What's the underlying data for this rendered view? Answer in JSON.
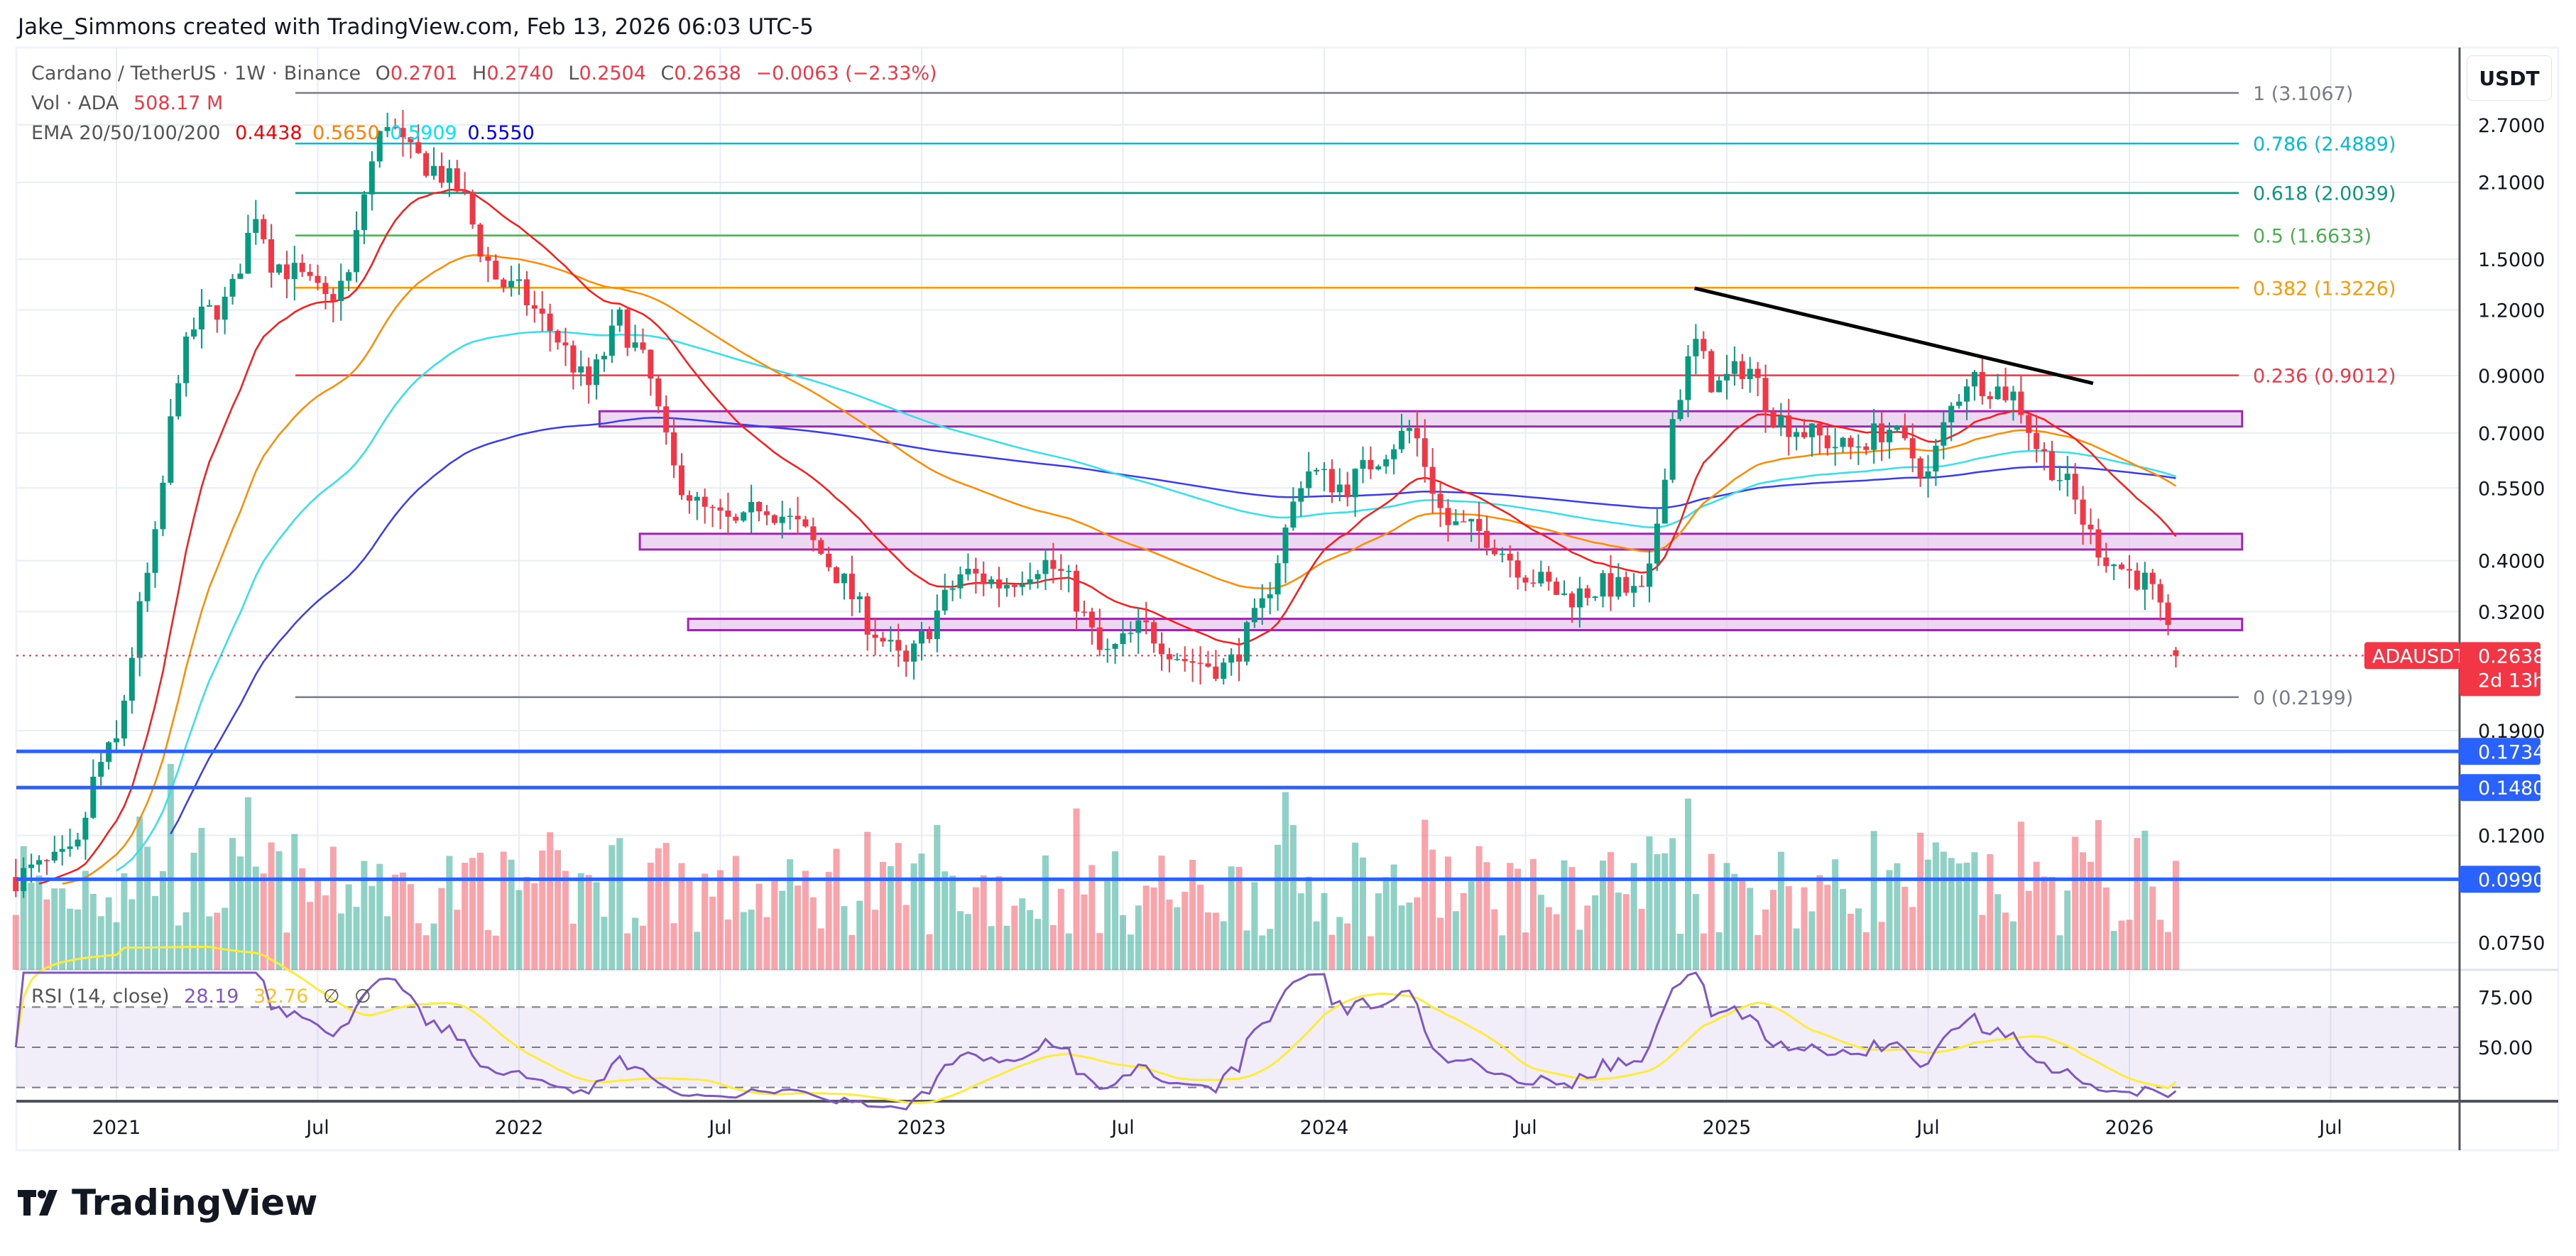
{
  "header": {
    "credit": "Jake_Simmons created with TradingView.com, Feb 13, 2026 06:03 UTC-5"
  },
  "legend": {
    "symbol": "Cardano / TetherUS · 1W · Binance",
    "o_label": "O",
    "o": "0.2701",
    "h_label": "H",
    "h": "0.2740",
    "l_label": "L",
    "l": "0.2504",
    "c_label": "C",
    "c": "0.2638",
    "change": "−0.0063 (−2.33%)",
    "vol_label": "Vol · ADA",
    "vol": "508.17 M",
    "ema_label": "EMA 20/50/100/200",
    "ema20": "0.4438",
    "ema50": "0.5650",
    "ema100": "0.5909",
    "ema200": "0.5550",
    "rsi_label": "RSI (14, close)",
    "rsi": "28.19",
    "rsi_ma": "32.76",
    "rsi_na1": "∅",
    "rsi_na2": "∅"
  },
  "axis": {
    "currency": "USDT"
  },
  "logo": {
    "text": "TradingView"
  },
  "colors": {
    "up": "#089981",
    "down": "#f23645",
    "ema20": "#ff1a1a",
    "ema50": "#ff8c00",
    "ema100": "#33e0ee",
    "ema200": "#3b3bf0",
    "rsi": "#7e57c2",
    "rsi_ma": "#ffeb3b",
    "hline": "#2962ff",
    "zone": "#9c27b0"
  },
  "chart_data": {
    "type": "candlestick",
    "title": "Cardano / TetherUS · 1W · Binance",
    "y_scale": "log",
    "y_ticks": [
      "2.7000",
      "2.1000",
      "1.5000",
      "1.2000",
      "0.9000",
      "0.7000",
      "0.5500",
      "0.4000",
      "0.3200",
      "0.1900",
      "0.1200",
      "0.0750"
    ],
    "x_ticks": [
      "2021",
      "Jul",
      "2022",
      "Jul",
      "2023",
      "Jul",
      "2024",
      "Jul",
      "2025",
      "Jul",
      "2026",
      "Jul"
    ],
    "x_tick_years": [
      2021.0,
      2021.5,
      2022.0,
      2022.5,
      2023.0,
      2023.5,
      2024.0,
      2024.5,
      2025.0,
      2025.5,
      2026.0,
      2026.5
    ],
    "last_candle": {
      "open": 0.2701,
      "high": 0.274,
      "low": 0.2504,
      "close": 0.2638
    },
    "current_price": {
      "symbol": "ADAUSDT",
      "price": "0.2638",
      "countdown": "2d 13h"
    },
    "approx_close_keypoints": [
      [
        2020.75,
        0.1
      ],
      [
        2020.9,
        0.11
      ],
      [
        2020.95,
        0.16
      ],
      [
        2021.0,
        0.18
      ],
      [
        2021.05,
        0.3
      ],
      [
        2021.1,
        0.45
      ],
      [
        2021.15,
        0.9
      ],
      [
        2021.2,
        1.15
      ],
      [
        2021.28,
        1.25
      ],
      [
        2021.35,
        1.9
      ],
      [
        2021.38,
        1.5
      ],
      [
        2021.45,
        1.4
      ],
      [
        2021.52,
        1.25
      ],
      [
        2021.58,
        1.4
      ],
      [
        2021.62,
        2.1
      ],
      [
        2021.67,
        2.8
      ],
      [
        2021.72,
        2.4
      ],
      [
        2021.8,
        2.2
      ],
      [
        2021.86,
        2.0
      ],
      [
        2021.9,
        1.6
      ],
      [
        2021.95,
        1.35
      ],
      [
        2022.0,
        1.3
      ],
      [
        2022.1,
        1.05
      ],
      [
        2022.17,
        0.85
      ],
      [
        2022.25,
        1.15
      ],
      [
        2022.32,
        0.92
      ],
      [
        2022.38,
        0.6
      ],
      [
        2022.45,
        0.5
      ],
      [
        2022.55,
        0.46
      ],
      [
        2022.6,
        0.52
      ],
      [
        2022.7,
        0.46
      ],
      [
        2022.8,
        0.37
      ],
      [
        2022.86,
        0.31
      ],
      [
        2022.96,
        0.25
      ],
      [
        2023.05,
        0.33
      ],
      [
        2023.1,
        0.38
      ],
      [
        2023.2,
        0.36
      ],
      [
        2023.3,
        0.4
      ],
      [
        2023.36,
        0.37
      ],
      [
        2023.45,
        0.26
      ],
      [
        2023.55,
        0.3
      ],
      [
        2023.65,
        0.26
      ],
      [
        2023.76,
        0.25
      ],
      [
        2023.85,
        0.33
      ],
      [
        2023.95,
        0.6
      ],
      [
        2024.05,
        0.55
      ],
      [
        2024.15,
        0.65
      ],
      [
        2024.22,
        0.72
      ],
      [
        2024.3,
        0.47
      ],
      [
        2024.4,
        0.45
      ],
      [
        2024.5,
        0.38
      ],
      [
        2024.6,
        0.34
      ],
      [
        2024.7,
        0.36
      ],
      [
        2024.8,
        0.34
      ],
      [
        2024.86,
        0.72
      ],
      [
        2024.92,
        1.05
      ],
      [
        2024.97,
        0.85
      ],
      [
        2025.05,
        0.95
      ],
      [
        2025.12,
        0.75
      ],
      [
        2025.2,
        0.7
      ],
      [
        2025.3,
        0.65
      ],
      [
        2025.4,
        0.72
      ],
      [
        2025.5,
        0.58
      ],
      [
        2025.55,
        0.76
      ],
      [
        2025.6,
        0.9
      ],
      [
        2025.67,
        0.85
      ],
      [
        2025.72,
        0.82
      ],
      [
        2025.77,
        0.66
      ],
      [
        2025.85,
        0.55
      ],
      [
        2025.9,
        0.45
      ],
      [
        2025.95,
        0.4
      ],
      [
        2026.0,
        0.38
      ],
      [
        2026.05,
        0.36
      ],
      [
        2026.1,
        0.28
      ],
      [
        2026.12,
        0.2638
      ]
    ],
    "fib_levels": [
      {
        "label": "1 (3.1067)",
        "price": 3.1067,
        "color": "#787b86"
      },
      {
        "label": "0.786 (2.4889)",
        "price": 2.4889,
        "color": "#00bcd4"
      },
      {
        "label": "0.618 (2.0039)",
        "price": 2.0039,
        "color": "#089981"
      },
      {
        "label": "0.5 (1.6633)",
        "price": 1.6633,
        "color": "#4caf50"
      },
      {
        "label": "0.382 (1.3226)",
        "price": 1.3226,
        "color": "#ff9800"
      },
      {
        "label": "0.236 (0.9012)",
        "price": 0.9012,
        "color": "#f23645"
      },
      {
        "label": "0 (0.2199)",
        "price": 0.2199,
        "color": "#787b86"
      }
    ],
    "horizontal_levels": [
      {
        "label": "0.1734",
        "price": 0.1734
      },
      {
        "label": "0.1480",
        "price": 0.148
      },
      {
        "label": "0.0990",
        "price": 0.099
      }
    ],
    "zones": [
      {
        "from": 2022.2,
        "to": 2026.28,
        "high": 0.77,
        "low": 0.72
      },
      {
        "from": 2022.3,
        "to": 2026.28,
        "high": 0.45,
        "low": 0.42
      },
      {
        "from": 2022.42,
        "to": 2026.28,
        "high": 0.31,
        "low": 0.295
      }
    ],
    "trendline": {
      "from": [
        2024.92,
        1.32
      ],
      "to": [
        2025.91,
        0.87
      ]
    },
    "rsi": {
      "ticks": [
        "75.00",
        "50.00"
      ],
      "bands": [
        70,
        50,
        30
      ],
      "value": 28.19,
      "ma": 32.76
    }
  }
}
